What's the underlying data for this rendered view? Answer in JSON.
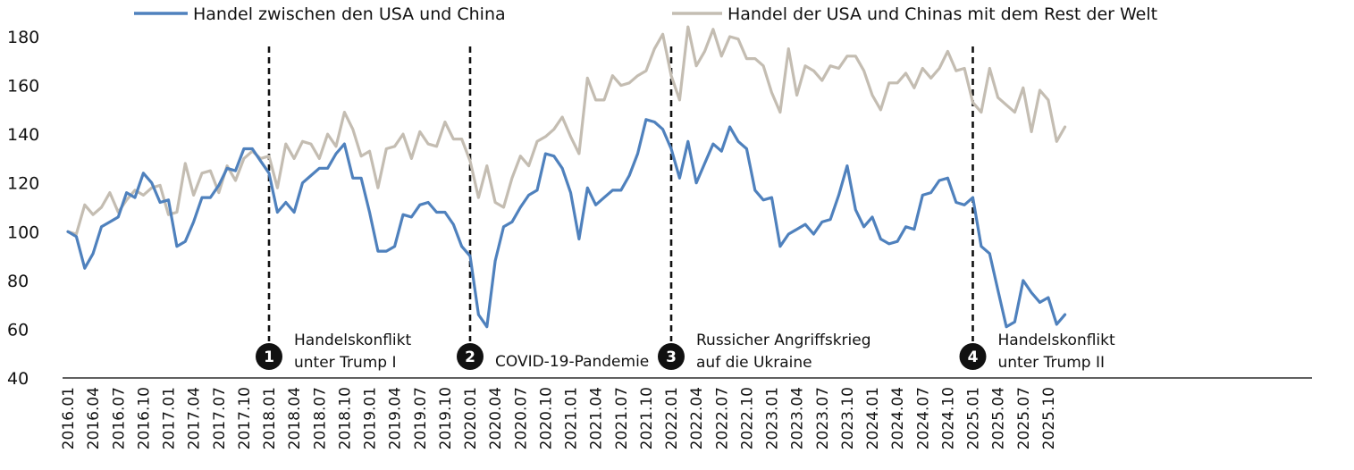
{
  "chart_data": {
    "type": "line",
    "title": "",
    "xlabel": "",
    "ylabel": "",
    "ylim": [
      40,
      180
    ],
    "yticks": [
      40,
      60,
      80,
      100,
      120,
      140,
      160,
      180
    ],
    "legend_position": "top",
    "grid": false,
    "x_tick_labels": [
      "2016.01",
      "2016.04",
      "2016.07",
      "2016.10",
      "2017.01",
      "2017.04",
      "2017.07",
      "2017.10",
      "2018.01",
      "2018.04",
      "2018.07",
      "2018.10",
      "2019.01",
      "2019.04",
      "2019.07",
      "2019.10",
      "2020.01",
      "2020.04",
      "2020.07",
      "2020.10",
      "2021.01",
      "2021.04",
      "2021.07",
      "2021.10",
      "2022.01",
      "2022.04",
      "2022.07",
      "2022.10",
      "2023.01",
      "2023.04",
      "2023.07",
      "2023.10",
      "2024.01",
      "2024.04",
      "2024.07",
      "2024.10",
      "2025.01",
      "2025.04",
      "2025.07",
      "2025.10"
    ],
    "x_start": "2016.01",
    "series": [
      {
        "name": "Handel zwischen den USA und China",
        "color": "#4f81bd",
        "values": [
          100,
          98,
          85,
          91,
          102,
          104,
          106,
          116,
          114,
          124,
          120,
          112,
          113,
          94,
          96,
          104,
          114,
          114,
          119,
          126,
          125,
          134,
          134,
          129,
          124,
          108,
          112,
          108,
          120,
          123,
          126,
          126,
          132,
          136,
          122,
          122,
          108,
          92,
          92,
          94,
          107,
          106,
          111,
          112,
          108,
          108,
          103,
          94,
          90,
          66,
          61,
          88,
          102,
          104,
          110,
          115,
          117,
          132,
          131,
          126,
          116,
          97,
          118,
          111,
          114,
          117,
          117,
          123,
          132,
          146,
          145,
          142,
          134,
          122,
          137,
          120,
          128,
          136,
          133,
          143,
          137,
          134,
          117,
          113,
          114,
          94,
          99,
          101,
          103,
          99,
          104,
          105,
          115,
          127,
          109,
          102,
          106,
          97,
          95,
          96,
          102,
          101,
          115,
          116,
          121,
          122,
          112,
          111,
          114,
          94,
          91,
          76,
          61,
          63,
          80,
          75,
          71,
          73,
          62,
          66
        ]
      },
      {
        "name": "Handel der USA und Chinas mit dem Rest der Welt",
        "color": "#c4bdb2",
        "values": [
          100,
          99,
          111,
          107,
          110,
          116,
          108,
          113,
          117,
          115,
          118,
          119,
          107,
          108,
          128,
          115,
          124,
          125,
          116,
          127,
          121,
          130,
          133,
          130,
          131,
          118,
          136,
          130,
          137,
          136,
          130,
          140,
          135,
          149,
          142,
          131,
          133,
          118,
          134,
          135,
          140,
          130,
          141,
          136,
          135,
          145,
          138,
          138,
          129,
          114,
          127,
          112,
          110,
          122,
          131,
          127,
          137,
          139,
          142,
          147,
          139,
          132,
          163,
          154,
          154,
          164,
          160,
          161,
          164,
          166,
          175,
          181,
          164,
          154,
          184,
          168,
          174,
          183,
          172,
          180,
          179,
          171,
          171,
          168,
          157,
          149,
          175,
          156,
          168,
          166,
          162,
          168,
          167,
          172,
          172,
          166,
          156,
          150,
          161,
          161,
          165,
          159,
          167,
          163,
          167,
          174,
          166,
          167,
          153,
          149,
          167,
          155,
          152,
          149,
          159,
          141,
          158,
          154,
          137,
          143
        ]
      }
    ],
    "annotations": [
      {
        "num": "1",
        "x_label": "2018.01",
        "lines": [
          "Handelskonflikt",
          "unter Trump I"
        ]
      },
      {
        "num": "2",
        "x_label": "2020.01",
        "lines": [
          "COVID-19-Pandemie"
        ]
      },
      {
        "num": "3",
        "x_label": "2022.01",
        "lines": [
          "Russicher Angriffskrieg",
          "auf die Ukraine"
        ]
      },
      {
        "num": "4",
        "x_label": "2025.01",
        "lines": [
          "Handelskonflikt",
          "unter Trump II"
        ]
      }
    ]
  }
}
